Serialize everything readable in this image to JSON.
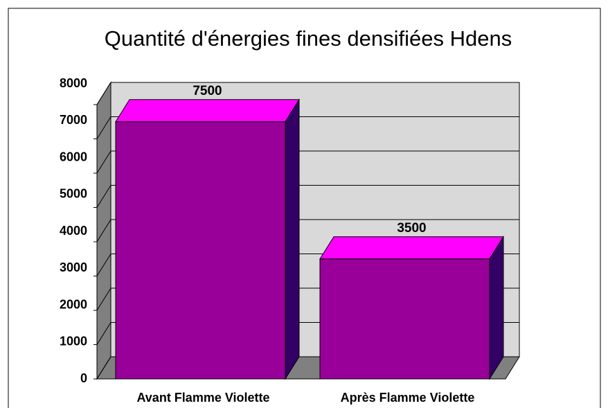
{
  "chart_data": {
    "type": "bar3d",
    "title": "Quantité d'énergies fines densifiées Hdens",
    "categories": [
      "Avant Flamme Violette",
      "Après Flamme Violette"
    ],
    "values": [
      7500,
      3500
    ],
    "color": "#990099",
    "ylim": [
      0,
      8000
    ],
    "yticks": [
      0,
      1000,
      2000,
      3000,
      4000,
      5000,
      6000,
      7000,
      8000
    ],
    "grid": true
  }
}
